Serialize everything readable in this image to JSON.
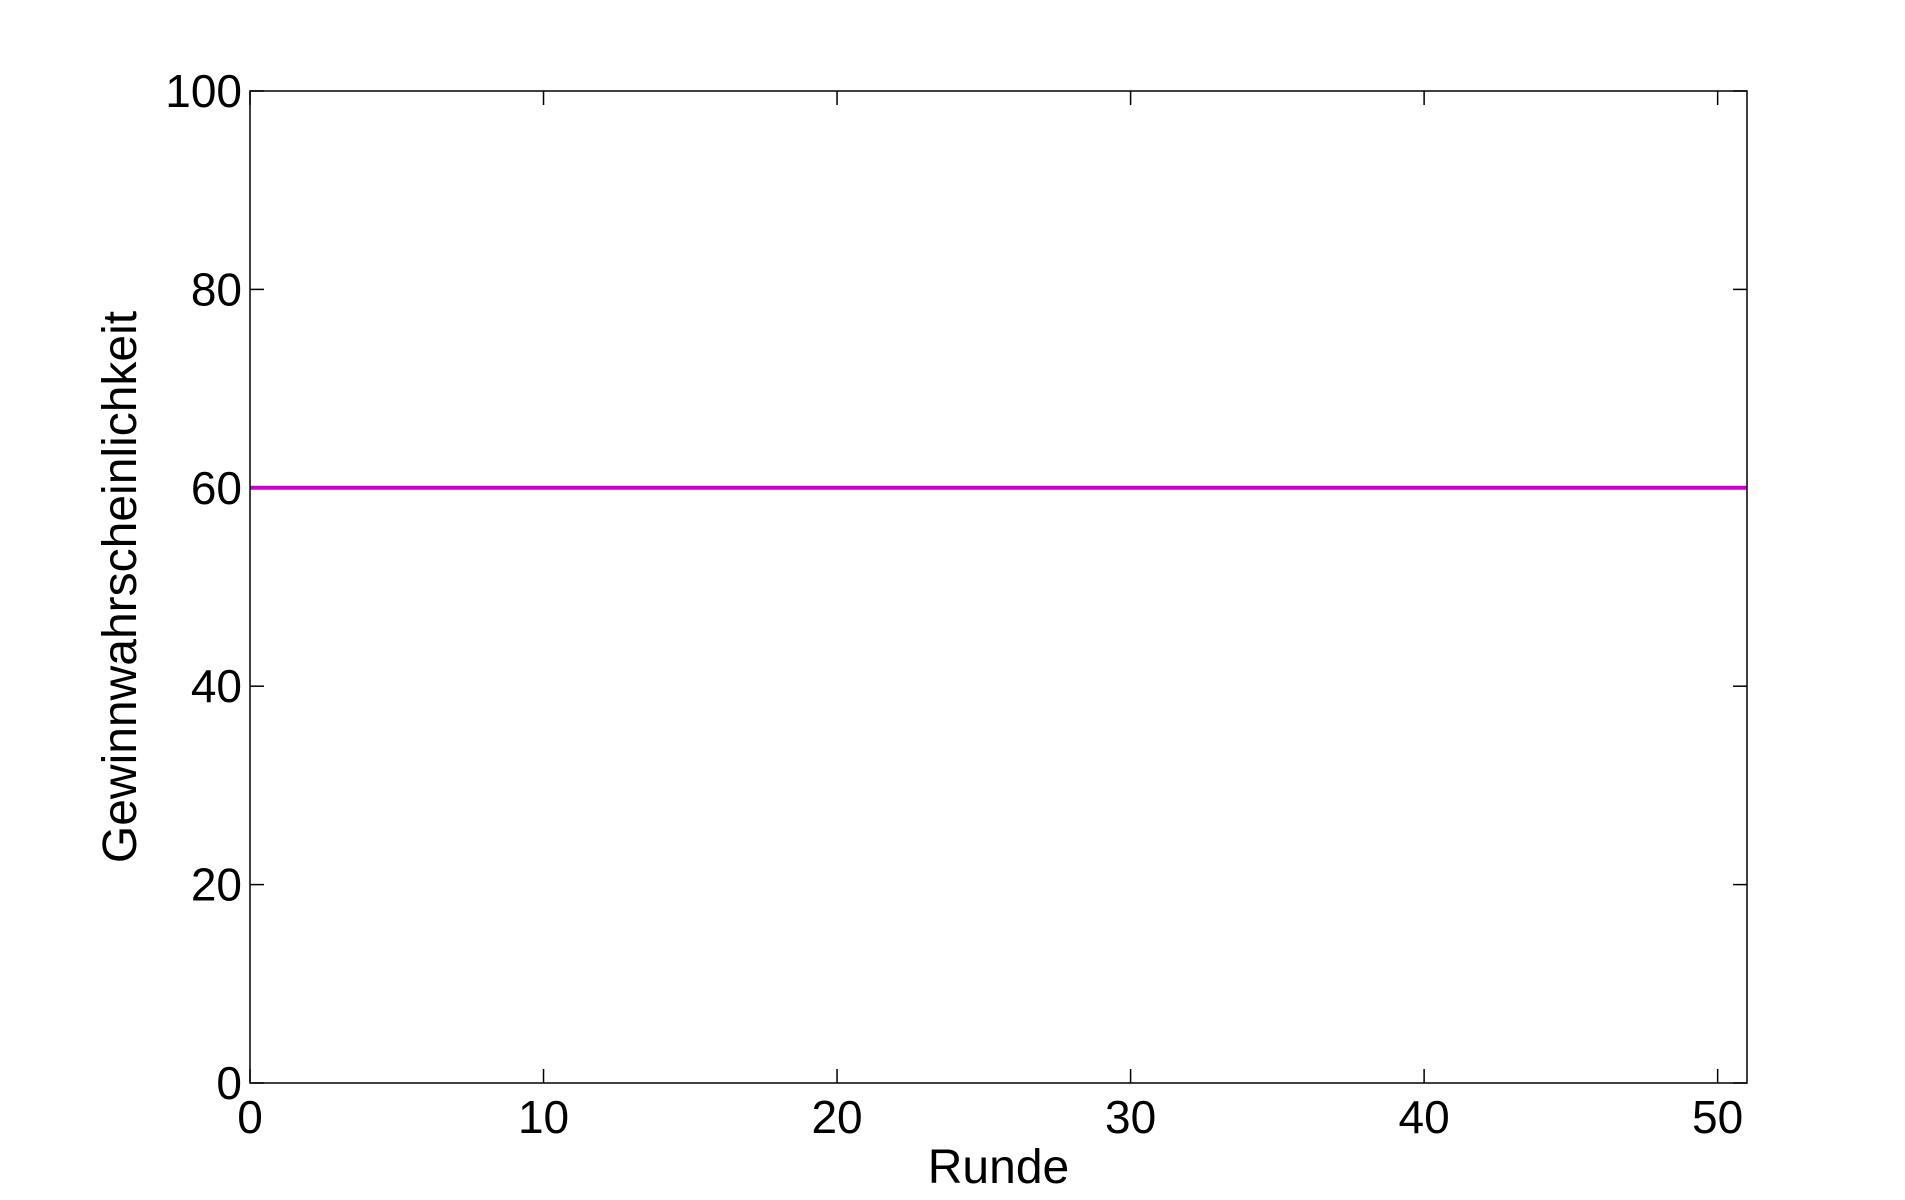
{
  "chart_data": {
    "type": "line",
    "title": "",
    "xlabel": "Runde",
    "ylabel": "Gewinnwahrscheinlichkeit",
    "xlim": [
      0,
      51
    ],
    "ylim": [
      0,
      100
    ],
    "x_ticks": [
      0,
      10,
      20,
      30,
      40,
      50
    ],
    "y_ticks": [
      0,
      20,
      40,
      60,
      80,
      100
    ],
    "grid": false,
    "series": [
      {
        "color": "#cc00cc",
        "x": [
          0,
          51
        ],
        "y": [
          60,
          60
        ]
      }
    ]
  }
}
